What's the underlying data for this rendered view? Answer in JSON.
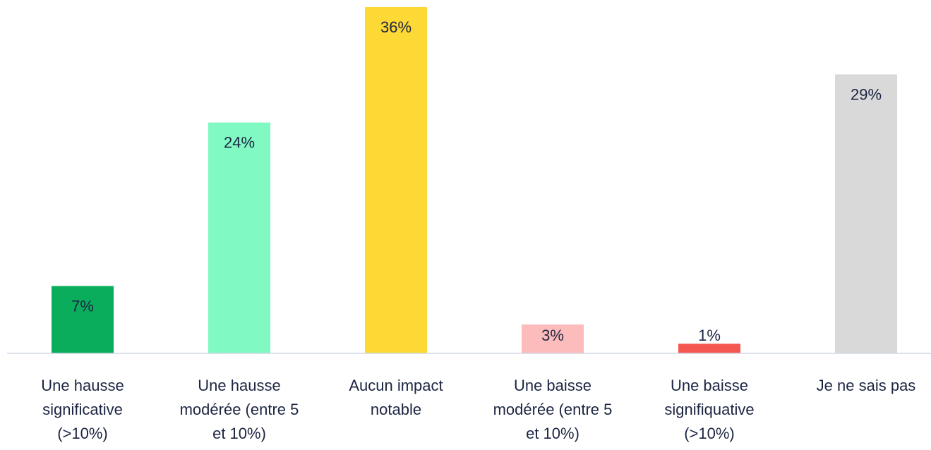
{
  "chart_data": {
    "type": "bar",
    "categories": [
      "Une hausse significative (>10%)",
      "Une hausse modérée (entre 5 et 10%)",
      "Aucun impact notable",
      "Une baisse modérée (entre 5 et 10%)",
      "Une baisse signifiquative (>10%)",
      "Je ne sais pas"
    ],
    "values": [
      7,
      24,
      36,
      3,
      1,
      29
    ],
    "value_labels": [
      "7%",
      "24%",
      "36%",
      "3%",
      "1%",
      "29%"
    ],
    "colors": [
      "#0aad5c",
      "#80f9c2",
      "#fcd935",
      "#fdbcbc",
      "#f4574f",
      "#d9d9d9"
    ],
    "ylim": [
      0,
      36
    ]
  }
}
